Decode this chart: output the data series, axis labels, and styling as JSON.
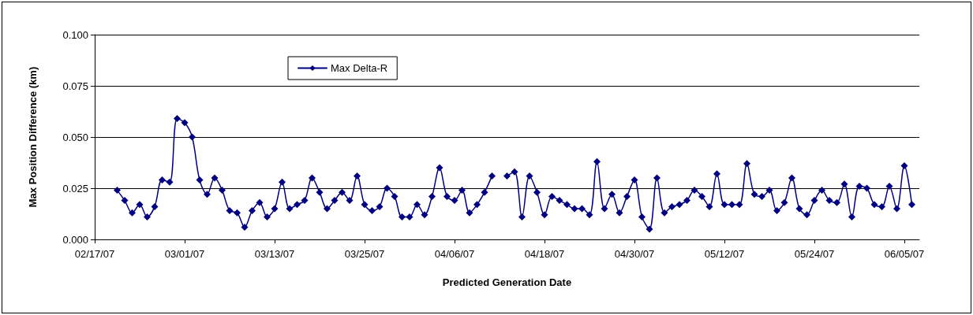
{
  "chart_data": {
    "type": "line",
    "xlabel": "Predicted Generation Date",
    "ylabel": "Max Position Difference (km)",
    "x": [
      "--02-20",
      "--02-21",
      "--02-22",
      "--02-23",
      "--02-24",
      "--02-25",
      "--02-26",
      "--02-27",
      "--02-28",
      "--03-01",
      "--03-02",
      "--03-03",
      "--03-04",
      "--03-05",
      "--03-06",
      "--03-07",
      "--03-08",
      "--03-09",
      "--03-10",
      "--03-11",
      "--03-12",
      "--03-13",
      "--03-14",
      "--03-15",
      "--03-16",
      "--03-17",
      "--03-18",
      "--03-19",
      "--03-20",
      "--03-21",
      "--03-22",
      "--03-23",
      "--03-24",
      "--03-25",
      "--03-26",
      "--03-27",
      "--03-28",
      "--03-29",
      "--03-30",
      "--03-31",
      "--04-01",
      "--04-02",
      "--04-03",
      "--04-04",
      "--04-05",
      "--04-06",
      "--04-07",
      "--04-08",
      "--04-09",
      "--04-10",
      "--04-11",
      "--04-12",
      "--04-13",
      "--04-14",
      "--04-15",
      "--04-16",
      "--04-17",
      "--04-18",
      "--04-19",
      "--04-20",
      "--04-21",
      "--04-22",
      "--04-23",
      "--04-24",
      "--04-25",
      "--04-26",
      "--04-27",
      "--04-28",
      "--04-29",
      "--04-30",
      "--05-01",
      "--05-02",
      "--05-03",
      "--05-04",
      "--05-05",
      "--05-06",
      "--05-07",
      "--05-08",
      "--05-09",
      "--05-10",
      "--05-11",
      "--05-12",
      "--05-13",
      "--05-14",
      "--05-15",
      "--05-16",
      "--05-17",
      "--05-18",
      "--05-19",
      "--05-20",
      "--05-21",
      "--05-22",
      "--05-23",
      "--05-24",
      "--05-25",
      "--05-26",
      "--05-27",
      "--05-28",
      "--05-29",
      "--05-30",
      "--05-31",
      "--06-01",
      "--06-02",
      "--06-03",
      "--06-04",
      "--06-05",
      "--06-06"
    ],
    "series": [
      {
        "name": "Max Delta-R",
        "color": "#000080",
        "values": [
          0.024,
          0.019,
          0.013,
          0.017,
          0.011,
          0.016,
          0.029,
          0.028,
          0.059,
          0.057,
          0.05,
          0.029,
          0.022,
          0.03,
          0.024,
          0.014,
          0.013,
          0.006,
          0.014,
          0.018,
          0.011,
          0.015,
          0.028,
          0.015,
          0.017,
          0.019,
          0.03,
          0.023,
          0.015,
          0.019,
          0.023,
          0.019,
          0.031,
          0.017,
          0.014,
          0.016,
          0.025,
          0.021,
          0.011,
          0.011,
          0.017,
          0.012,
          0.021,
          0.035,
          0.021,
          0.019,
          0.024,
          0.013,
          0.017,
          0.023,
          0.031,
          null,
          0.031,
          0.033,
          0.011,
          0.031,
          0.023,
          0.012,
          0.021,
          0.019,
          0.017,
          0.015,
          0.015,
          0.012,
          0.038,
          0.015,
          0.022,
          0.013,
          0.021,
          0.029,
          0.011,
          0.005,
          0.03,
          0.013,
          0.016,
          0.017,
          0.019,
          0.024,
          0.021,
          0.016,
          0.032,
          0.017,
          0.017,
          0.017,
          0.037,
          0.022,
          0.021,
          0.024,
          0.014,
          0.018,
          0.03,
          0.015,
          0.012,
          0.019,
          0.024,
          0.019,
          0.018,
          0.027,
          0.011,
          0.026,
          0.025,
          0.017,
          0.016,
          0.026,
          0.015,
          0.036,
          0.017
        ]
      }
    ],
    "xlim": [
      "--02-17",
      "--06-07"
    ],
    "xticks": [
      {
        "value": "--02-17",
        "label": "02/17/07"
      },
      {
        "value": "--03-01",
        "label": "03/01/07"
      },
      {
        "value": "--03-13",
        "label": "03/13/07"
      },
      {
        "value": "--03-25",
        "label": "03/25/07"
      },
      {
        "value": "--04-06",
        "label": "04/06/07"
      },
      {
        "value": "--04-18",
        "label": "04/18/07"
      },
      {
        "value": "--04-30",
        "label": "04/30/07"
      },
      {
        "value": "--05-12",
        "label": "05/12/07"
      },
      {
        "value": "--05-24",
        "label": "05/24/07"
      },
      {
        "value": "--06-05",
        "label": "06/05/07"
      }
    ],
    "ylim": [
      0,
      0.1
    ],
    "yticks": [
      {
        "value": 0,
        "label": "0.000"
      },
      {
        "value": 0.025,
        "label": "0.025"
      },
      {
        "value": 0.05,
        "label": "0.050"
      },
      {
        "value": 0.075,
        "label": "0.075"
      },
      {
        "value": 0.1,
        "label": "0.100"
      }
    ],
    "grid": "y",
    "legend": "top left",
    "marker": "diamond",
    "line_style": "solid"
  }
}
